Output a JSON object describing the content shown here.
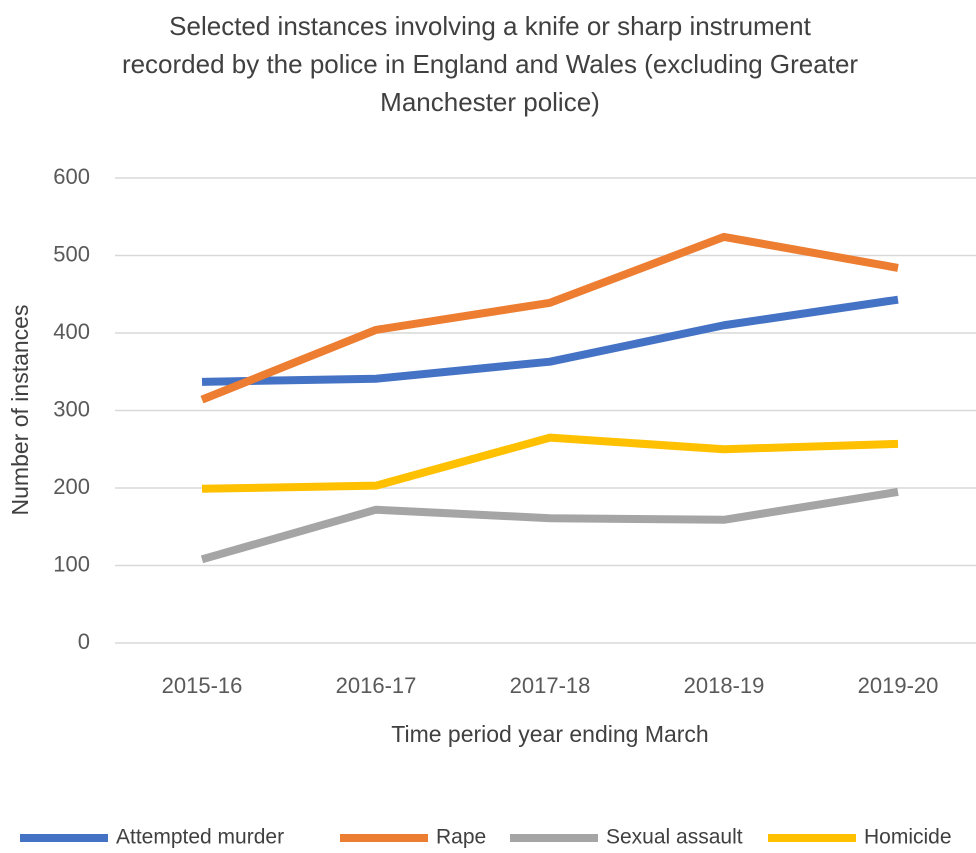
{
  "chart_data": {
    "type": "line",
    "title": [
      "Selected instances involving a knife or sharp instrument",
      "recorded by the police in England and Wales (excluding Greater",
      "Manchester police)"
    ],
    "xlabel": "Time period year ending March",
    "ylabel": "Number of instances",
    "categories": [
      "2015-16",
      "2016-17",
      "2017-18",
      "2018-19",
      "2019-20"
    ],
    "series": [
      {
        "name": "Attempted murder",
        "color": "#4472c4",
        "values": [
          337,
          341,
          363,
          410,
          443
        ]
      },
      {
        "name": "Rape",
        "color": "#ed7d31",
        "values": [
          314,
          404,
          439,
          524,
          484
        ]
      },
      {
        "name": "Sexual assault",
        "color": "#a5a5a5",
        "values": [
          108,
          172,
          161,
          159,
          195
        ]
      },
      {
        "name": "Homicide",
        "color": "#ffc000",
        "values": [
          199,
          203,
          265,
          250,
          257
        ]
      }
    ],
    "ylim": [
      0,
      600
    ],
    "yticks": [
      0,
      100,
      200,
      300,
      400,
      500,
      600
    ],
    "grid": true,
    "legend": "bottom"
  }
}
